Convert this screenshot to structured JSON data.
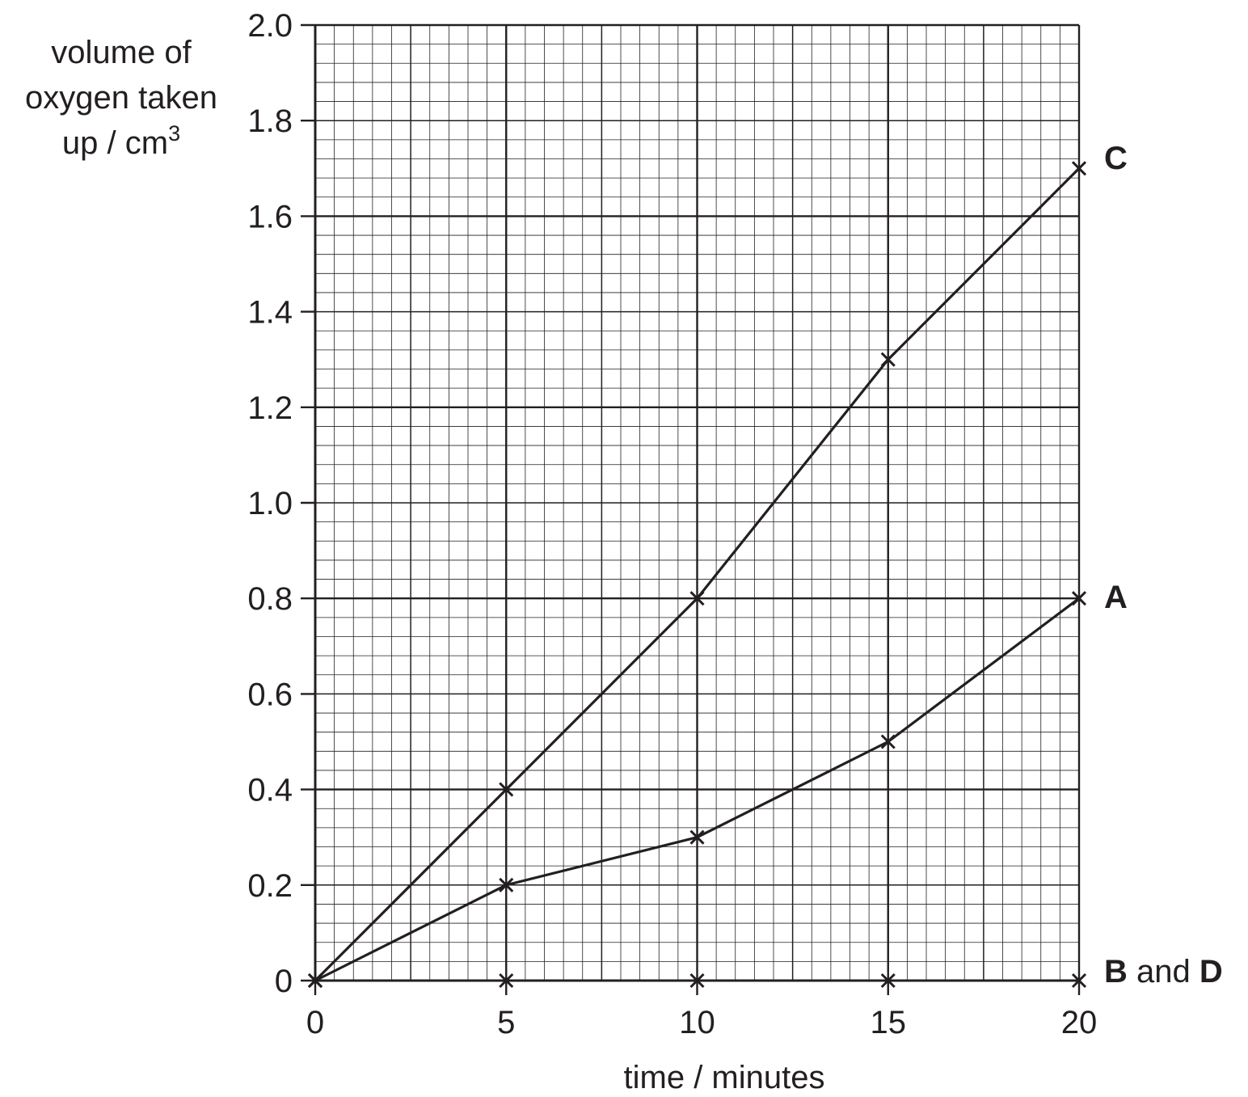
{
  "chart_data": {
    "type": "line",
    "x": [
      0,
      5,
      10,
      15,
      20
    ],
    "xlim": [
      0,
      20
    ],
    "ylim": [
      0,
      2.0
    ],
    "xticks": [
      "0",
      "5",
      "10",
      "15",
      "20"
    ],
    "yticks": [
      "0",
      "0.2",
      "0.4",
      "0.6",
      "0.8",
      "1.0",
      "1.2",
      "1.4",
      "1.6",
      "1.8",
      "2.0"
    ],
    "xlabel": "time / minutes",
    "ylabel": {
      "line1": "volume of",
      "line2": "oxygen taken",
      "line3_main": "up / cm",
      "line3_sup": "3"
    },
    "grid": "graph paper",
    "marker": "×",
    "series": [
      {
        "name": "C",
        "values": [
          0,
          0.4,
          0.8,
          1.3,
          1.7
        ]
      },
      {
        "name": "A",
        "values": [
          0,
          0.2,
          0.3,
          0.5,
          0.8
        ]
      },
      {
        "name": "B and D",
        "values": [
          0,
          0,
          0,
          0,
          0
        ]
      }
    ],
    "series_labels": {
      "C": {
        "bold": "C"
      },
      "A": {
        "bold": "A"
      },
      "B and D": {
        "b": "B",
        "and": " and ",
        "d": "D"
      }
    }
  }
}
